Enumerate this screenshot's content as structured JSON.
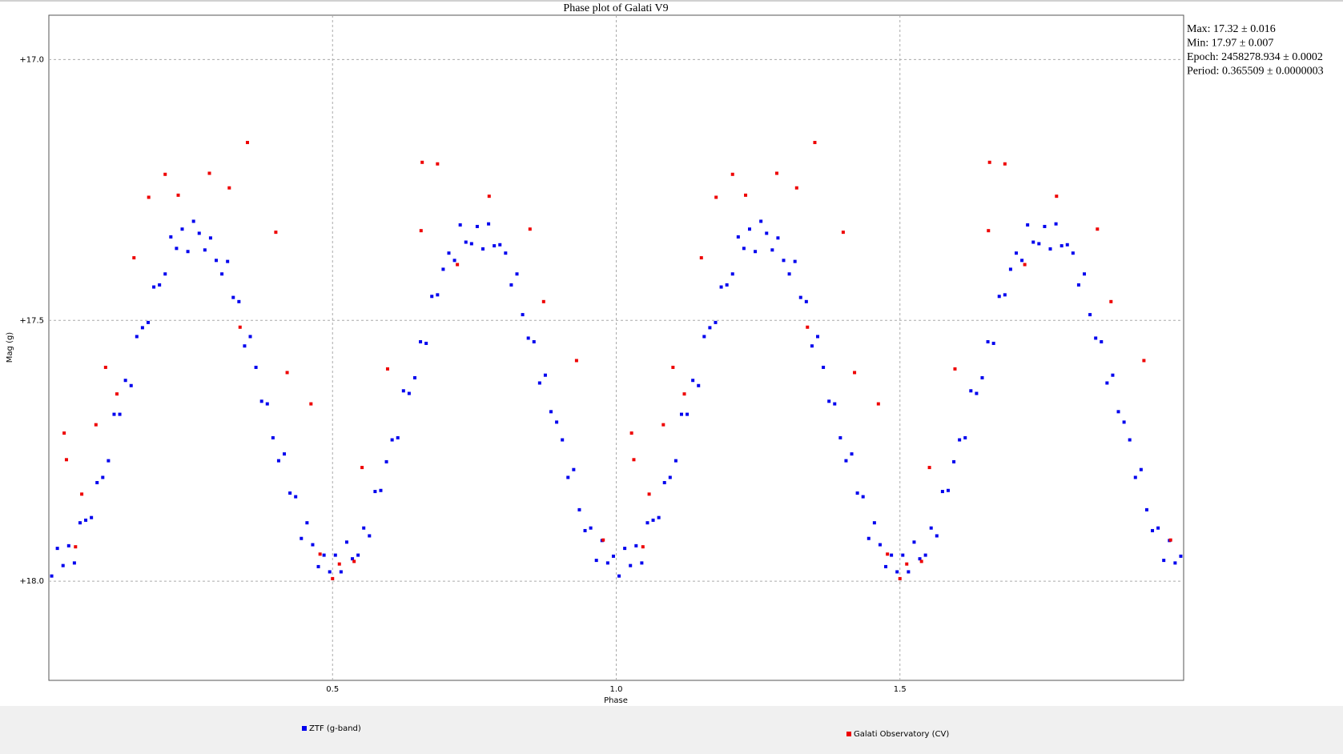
{
  "chart_data": {
    "type": "scatter",
    "title": "Phase plot of Galati V9",
    "xlabel": "Phase",
    "ylabel": "Mag (g)",
    "xlim": [
      0,
      2
    ],
    "ylim": [
      16.915,
      18.19
    ],
    "y_inverted": true,
    "xticks": [
      0.5,
      {
        "value": 1,
        "label": "1.0"
      },
      1.5
    ],
    "yticks": [
      {
        "value": 17,
        "label": "+17.0"
      },
      {
        "value": 17.5,
        "label": "+17.5"
      },
      {
        "value": 18,
        "label": "+18.0"
      }
    ],
    "grid": true,
    "annotations": [
      "Max: 17.32 ± 0.016",
      "Min: 17.97 ± 0.007",
      "Epoch: 2458278.934 ± 0.0002",
      "Period: 0.365509 ± 0.0000003"
    ],
    "series": [
      {
        "name": "ZTF (g-band)",
        "color": "#0000ee",
        "x": [
          0.005,
          0.015,
          0.025,
          0.035,
          0.045,
          0.055,
          0.065,
          0.075,
          0.085,
          0.095,
          0.105,
          0.115,
          0.125,
          0.135,
          0.145,
          0.155,
          0.165,
          0.175,
          0.185,
          0.195,
          0.205,
          0.215,
          0.225,
          0.235,
          0.245,
          0.255,
          0.265,
          0.275,
          0.285,
          0.295,
          0.305,
          0.315,
          0.325,
          0.335,
          0.345,
          0.355,
          0.365,
          0.375,
          0.385,
          0.395,
          0.405,
          0.415,
          0.425,
          0.435,
          0.445,
          0.455,
          0.465,
          0.475,
          0.485,
          0.495,
          0.505,
          0.515,
          0.525,
          0.535,
          0.545,
          0.555,
          0.565,
          0.575,
          0.585,
          0.595,
          0.605,
          0.615,
          0.625,
          0.635,
          0.645,
          0.655,
          0.665,
          0.675,
          0.685,
          0.695,
          0.705,
          0.715,
          0.725,
          0.735,
          0.745,
          0.755,
          0.765,
          0.775,
          0.785,
          0.795,
          0.805,
          0.815,
          0.825,
          0.835,
          0.845,
          0.855,
          0.865,
          0.875,
          0.885,
          0.895,
          0.905,
          0.915,
          0.925,
          0.935,
          0.945,
          0.955,
          0.965,
          0.975,
          0.985,
          0.995,
          1.005,
          1.015,
          1.025,
          1.035,
          1.045,
          1.055,
          1.065,
          1.075,
          1.085,
          1.095,
          1.105,
          1.115,
          1.125,
          1.135,
          1.145,
          1.155,
          1.165,
          1.175,
          1.185,
          1.195,
          1.205,
          1.215,
          1.225,
          1.235,
          1.245,
          1.255,
          1.265,
          1.275,
          1.285,
          1.295,
          1.305,
          1.315,
          1.325,
          1.335,
          1.345,
          1.355,
          1.365,
          1.375,
          1.385,
          1.395,
          1.405,
          1.415,
          1.425,
          1.435,
          1.445,
          1.455,
          1.465,
          1.475,
          1.485,
          1.495,
          1.505,
          1.515,
          1.525,
          1.535,
          1.545,
          1.555,
          1.565,
          1.575,
          1.585,
          1.595,
          1.605,
          1.615,
          1.625,
          1.635,
          1.645,
          1.655,
          1.665,
          1.675,
          1.685,
          1.695,
          1.705,
          1.715,
          1.725,
          1.735,
          1.745,
          1.755,
          1.765,
          1.775,
          1.785,
          1.795,
          1.805,
          1.815,
          1.825,
          1.835,
          1.845,
          1.855,
          1.865,
          1.875,
          1.885,
          1.895,
          1.905,
          1.915,
          1.925,
          1.935,
          1.945,
          1.955,
          1.965,
          1.975,
          1.985,
          1.995
        ],
        "values": [
          17.99,
          17.937,
          17.97,
          17.932,
          17.965,
          17.888,
          17.883,
          17.878,
          17.811,
          17.801,
          17.769,
          17.68,
          17.68,
          17.615,
          17.625,
          17.531,
          17.514,
          17.504,
          17.436,
          17.432,
          17.411,
          17.34,
          17.362,
          17.325,
          17.368,
          17.31,
          17.333,
          17.365,
          17.342,
          17.385,
          17.411,
          17.387,
          17.456,
          17.464,
          17.549,
          17.531,
          17.59,
          17.655,
          17.66,
          17.725,
          17.769,
          17.756,
          17.831,
          17.838,
          17.918,
          17.888,
          17.93,
          17.972,
          17.95,
          17.982,
          17.95,
          17.982,
          17.925,
          17.957,
          17.95,
          17.898,
          17.913,
          17.828,
          17.826,
          17.771,
          17.729,
          17.725,
          17.635,
          17.64,
          17.61,
          17.541,
          17.544,
          17.454,
          17.451,
          17.402,
          17.371,
          17.385,
          17.317,
          17.35,
          17.353,
          17.32,
          17.363,
          17.315,
          17.357,
          17.355,
          17.371,
          17.432,
          17.411,
          17.489,
          17.534,
          17.541,
          17.62,
          17.605,
          17.675,
          17.695,
          17.729,
          17.801,
          17.786,
          17.863,
          17.903,
          17.898,
          17.96,
          17.922,
          17.965,
          17.952,
          17.99,
          17.937,
          17.97,
          17.932,
          17.965,
          17.888,
          17.883,
          17.878,
          17.811,
          17.801,
          17.769,
          17.68,
          17.68,
          17.615,
          17.625,
          17.531,
          17.514,
          17.504,
          17.436,
          17.432,
          17.411,
          17.34,
          17.362,
          17.325,
          17.368,
          17.31,
          17.333,
          17.365,
          17.342,
          17.385,
          17.411,
          17.387,
          17.456,
          17.464,
          17.549,
          17.531,
          17.59,
          17.655,
          17.66,
          17.725,
          17.769,
          17.756,
          17.831,
          17.838,
          17.918,
          17.888,
          17.93,
          17.972,
          17.95,
          17.982,
          17.95,
          17.982,
          17.925,
          17.957,
          17.95,
          17.898,
          17.913,
          17.828,
          17.826,
          17.771,
          17.729,
          17.725,
          17.635,
          17.64,
          17.61,
          17.541,
          17.544,
          17.454,
          17.451,
          17.402,
          17.371,
          17.385,
          17.317,
          17.35,
          17.353,
          17.32,
          17.363,
          17.315,
          17.357,
          17.355,
          17.371,
          17.432,
          17.411,
          17.489,
          17.534,
          17.541,
          17.62,
          17.605,
          17.675,
          17.695,
          17.729,
          17.801,
          17.786,
          17.863,
          17.903,
          17.898,
          17.96,
          17.922,
          17.965,
          17.952
        ]
      },
      {
        "name": "Galati Observatory (CV)",
        "color": "#ee0000",
        "x": [
          0.027,
          0.031,
          0.047,
          0.058,
          0.083,
          0.12,
          0.1,
          0.15,
          0.176,
          0.205,
          0.228,
          0.283,
          0.318,
          0.35,
          0.337,
          0.4,
          0.42,
          0.462,
          0.478,
          0.5,
          0.512,
          0.538,
          0.552,
          0.597,
          0.656,
          0.658,
          0.685,
          0.72,
          0.776,
          0.848,
          0.872,
          0.93,
          0.977,
          1.027,
          1.031,
          1.047,
          1.058,
          1.083,
          1.12,
          1.1,
          1.15,
          1.176,
          1.205,
          1.228,
          1.283,
          1.318,
          1.35,
          1.337,
          1.4,
          1.42,
          1.462,
          1.478,
          1.5,
          1.512,
          1.538,
          1.552,
          1.597,
          1.656,
          1.658,
          1.685,
          1.72,
          1.776,
          1.848,
          1.872,
          1.93,
          1.977
        ],
        "values": [
          17.716,
          17.767,
          17.934,
          17.833,
          17.7,
          17.641,
          17.59,
          17.38,
          17.264,
          17.22,
          17.26,
          17.218,
          17.246,
          17.159,
          17.513,
          17.331,
          17.6,
          17.66,
          17.948,
          17.995,
          17.967,
          17.962,
          17.782,
          17.593,
          17.328,
          17.197,
          17.2,
          17.393,
          17.262,
          17.325,
          17.464,
          17.577,
          17.921,
          17.716,
          17.767,
          17.934,
          17.833,
          17.7,
          17.641,
          17.59,
          17.38,
          17.264,
          17.22,
          17.26,
          17.218,
          17.246,
          17.159,
          17.513,
          17.331,
          17.6,
          17.66,
          17.948,
          17.995,
          17.967,
          17.962,
          17.782,
          17.593,
          17.328,
          17.197,
          17.2,
          17.393,
          17.262,
          17.325,
          17.464,
          17.577,
          17.921
        ]
      }
    ]
  }
}
